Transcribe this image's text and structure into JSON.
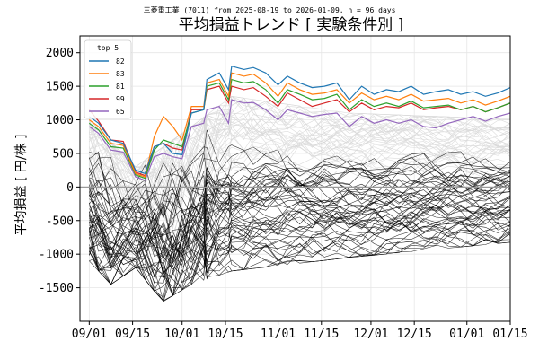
{
  "chart_data": {
    "type": "line",
    "suptitle": "三菱重工業 (7011) from 2025-08-19 to 2026-01-09, n = 96 days",
    "title": "平均損益トレンド [ 実験条件別 ]",
    "xlabel": "",
    "ylabel": "平均損益 [ 円/株 ]",
    "x_start": "2025-09-01",
    "x_end": "2026-01-09",
    "xlim": [
      "2025-08-29",
      "2026-01-15"
    ],
    "ylim": [
      -2000,
      2250
    ],
    "xticks": [
      "09/01",
      "09/15",
      "10/01",
      "10/15",
      "11/01",
      "11/15",
      "12/01",
      "12/15",
      "01/01",
      "01/15"
    ],
    "xtick_dates": [
      "2025-09-01",
      "2025-09-15",
      "2025-10-01",
      "2025-10-15",
      "2025-11-01",
      "2025-11-15",
      "2025-12-01",
      "2025-12-15",
      "2026-01-01",
      "2026-01-15"
    ],
    "yticks": [
      -1500,
      -1000,
      -500,
      0,
      500,
      1000,
      1500,
      2000
    ],
    "grid": true,
    "zero_line": true,
    "legend": {
      "title": "top 5",
      "position": "top-left",
      "entries": [
        {
          "label": "82",
          "color": "#1f77b4"
        },
        {
          "label": "83",
          "color": "#ff7f0e"
        },
        {
          "label": "81",
          "color": "#2ca02c"
        },
        {
          "label": "99",
          "color": "#d62728"
        },
        {
          "label": "65",
          "color": "#9467bd"
        }
      ]
    },
    "top_series": [
      {
        "name": "82",
        "color": "#1f77b4",
        "points": [
          [
            0,
            1050
          ],
          [
            3,
            950
          ],
          [
            7,
            700
          ],
          [
            11,
            650
          ],
          [
            15,
            250
          ],
          [
            18,
            200
          ],
          [
            21,
            600
          ],
          [
            24,
            650
          ],
          [
            27,
            500
          ],
          [
            30,
            480
          ],
          [
            33,
            1100
          ],
          [
            37,
            1150
          ],
          [
            38,
            1600
          ],
          [
            42,
            1700
          ],
          [
            45,
            1450
          ],
          [
            46,
            1800
          ],
          [
            50,
            1750
          ],
          [
            53,
            1780
          ],
          [
            57,
            1700
          ],
          [
            61,
            1520
          ],
          [
            64,
            1650
          ],
          [
            68,
            1550
          ],
          [
            72,
            1480
          ],
          [
            76,
            1500
          ],
          [
            80,
            1550
          ],
          [
            84,
            1300
          ],
          [
            88,
            1500
          ],
          [
            92,
            1380
          ],
          [
            96,
            1450
          ],
          [
            100,
            1420
          ],
          [
            104,
            1500
          ],
          [
            108,
            1380
          ],
          [
            112,
            1420
          ],
          [
            116,
            1450
          ],
          [
            120,
            1380
          ],
          [
            124,
            1420
          ],
          [
            128,
            1350
          ],
          [
            132,
            1400
          ],
          [
            136,
            1480
          ],
          [
            138,
            1450
          ],
          [
            141,
            1380
          ]
        ]
      },
      {
        "name": "83",
        "color": "#ff7f0e",
        "points": [
          [
            0,
            1000
          ],
          [
            3,
            900
          ],
          [
            7,
            650
          ],
          [
            11,
            620
          ],
          [
            15,
            200
          ],
          [
            18,
            150
          ],
          [
            21,
            750
          ],
          [
            24,
            1050
          ],
          [
            27,
            900
          ],
          [
            30,
            700
          ],
          [
            33,
            1200
          ],
          [
            37,
            1200
          ],
          [
            38,
            1550
          ],
          [
            42,
            1600
          ],
          [
            45,
            1350
          ],
          [
            46,
            1700
          ],
          [
            50,
            1650
          ],
          [
            53,
            1680
          ],
          [
            57,
            1550
          ],
          [
            61,
            1350
          ],
          [
            64,
            1550
          ],
          [
            68,
            1450
          ],
          [
            72,
            1380
          ],
          [
            76,
            1400
          ],
          [
            80,
            1450
          ],
          [
            84,
            1250
          ],
          [
            88,
            1400
          ],
          [
            92,
            1300
          ],
          [
            96,
            1350
          ],
          [
            100,
            1300
          ],
          [
            104,
            1380
          ],
          [
            108,
            1280
          ],
          [
            112,
            1300
          ],
          [
            116,
            1320
          ],
          [
            120,
            1250
          ],
          [
            124,
            1300
          ],
          [
            128,
            1220
          ],
          [
            132,
            1280
          ],
          [
            136,
            1350
          ],
          [
            138,
            1320
          ],
          [
            141,
            1250
          ]
        ]
      },
      {
        "name": "81",
        "color": "#2ca02c",
        "points": [
          [
            0,
            950
          ],
          [
            3,
            850
          ],
          [
            7,
            600
          ],
          [
            11,
            580
          ],
          [
            15,
            180
          ],
          [
            18,
            130
          ],
          [
            21,
            550
          ],
          [
            24,
            700
          ],
          [
            27,
            650
          ],
          [
            30,
            600
          ],
          [
            33,
            1100
          ],
          [
            37,
            1150
          ],
          [
            38,
            1500
          ],
          [
            42,
            1550
          ],
          [
            45,
            1300
          ],
          [
            46,
            1600
          ],
          [
            50,
            1550
          ],
          [
            53,
            1570
          ],
          [
            57,
            1450
          ],
          [
            61,
            1250
          ],
          [
            64,
            1450
          ],
          [
            68,
            1380
          ],
          [
            72,
            1300
          ],
          [
            76,
            1320
          ],
          [
            80,
            1380
          ],
          [
            84,
            1150
          ],
          [
            88,
            1300
          ],
          [
            92,
            1200
          ],
          [
            96,
            1250
          ],
          [
            100,
            1200
          ],
          [
            104,
            1280
          ],
          [
            108,
            1180
          ],
          [
            112,
            1200
          ],
          [
            116,
            1220
          ],
          [
            120,
            1150
          ],
          [
            124,
            1200
          ],
          [
            128,
            1120
          ],
          [
            132,
            1180
          ],
          [
            136,
            1250
          ],
          [
            138,
            1220
          ],
          [
            141,
            1150
          ]
        ]
      },
      {
        "name": "99",
        "color": "#d62728",
        "points": [
          [
            0,
            1150
          ],
          [
            3,
            980
          ],
          [
            7,
            700
          ],
          [
            11,
            680
          ],
          [
            15,
            220
          ],
          [
            18,
            170
          ],
          [
            21,
            600
          ],
          [
            24,
            650
          ],
          [
            27,
            580
          ],
          [
            30,
            550
          ],
          [
            33,
            1150
          ],
          [
            37,
            1150
          ],
          [
            38,
            1450
          ],
          [
            42,
            1500
          ],
          [
            45,
            1250
          ],
          [
            46,
            1500
          ],
          [
            50,
            1450
          ],
          [
            53,
            1480
          ],
          [
            57,
            1350
          ],
          [
            61,
            1200
          ],
          [
            64,
            1400
          ],
          [
            68,
            1300
          ],
          [
            72,
            1200
          ],
          [
            76,
            1250
          ],
          [
            80,
            1300
          ],
          [
            84,
            1120
          ],
          [
            88,
            1250
          ],
          [
            92,
            1150
          ],
          [
            96,
            1200
          ],
          [
            100,
            1180
          ],
          [
            104,
            1250
          ],
          [
            108,
            1150
          ],
          [
            112,
            1180
          ],
          [
            116,
            1200
          ],
          [
            120,
            1150
          ],
          [
            124,
            1200
          ],
          [
            128,
            1120
          ],
          [
            132,
            1180
          ],
          [
            136,
            1250
          ],
          [
            138,
            1220
          ],
          [
            141,
            1180
          ]
        ]
      },
      {
        "name": "65",
        "color": "#9467bd",
        "points": [
          [
            0,
            900
          ],
          [
            3,
            800
          ],
          [
            7,
            550
          ],
          [
            11,
            520
          ],
          [
            15,
            150
          ],
          [
            18,
            100
          ],
          [
            21,
            450
          ],
          [
            24,
            500
          ],
          [
            27,
            450
          ],
          [
            30,
            420
          ],
          [
            33,
            900
          ],
          [
            37,
            950
          ],
          [
            38,
            1150
          ],
          [
            42,
            1200
          ],
          [
            45,
            950
          ],
          [
            46,
            1300
          ],
          [
            50,
            1250
          ],
          [
            53,
            1260
          ],
          [
            57,
            1150
          ],
          [
            61,
            1000
          ],
          [
            64,
            1150
          ],
          [
            68,
            1100
          ],
          [
            72,
            1050
          ],
          [
            76,
            1080
          ],
          [
            80,
            1100
          ],
          [
            84,
            900
          ],
          [
            88,
            1050
          ],
          [
            92,
            950
          ],
          [
            96,
            1000
          ],
          [
            100,
            950
          ],
          [
            104,
            1000
          ],
          [
            108,
            900
          ],
          [
            112,
            880
          ],
          [
            116,
            950
          ],
          [
            120,
            1000
          ],
          [
            124,
            1050
          ],
          [
            128,
            980
          ],
          [
            132,
            1050
          ],
          [
            136,
            1100
          ],
          [
            138,
            1080
          ],
          [
            141,
            1030
          ]
        ]
      }
    ],
    "background_series": {
      "description": "remaining 91 experiment conditions",
      "count": 91,
      "color_above_zero": "#d8d8d8",
      "color_below_zero": "#000000",
      "upper_envelope": [
        [
          0,
          1000
        ],
        [
          15,
          300
        ],
        [
          33,
          900
        ],
        [
          46,
          1350
        ],
        [
          84,
          1100
        ],
        [
          141,
          1000
        ]
      ],
      "lower_envelope": [
        [
          0,
          -1100
        ],
        [
          7,
          -1450
        ],
        [
          15,
          -1200
        ],
        [
          21,
          -1550
        ],
        [
          24,
          -1700
        ],
        [
          33,
          -1450
        ],
        [
          46,
          -1250
        ],
        [
          84,
          -1050
        ],
        [
          141,
          -800
        ]
      ]
    }
  }
}
